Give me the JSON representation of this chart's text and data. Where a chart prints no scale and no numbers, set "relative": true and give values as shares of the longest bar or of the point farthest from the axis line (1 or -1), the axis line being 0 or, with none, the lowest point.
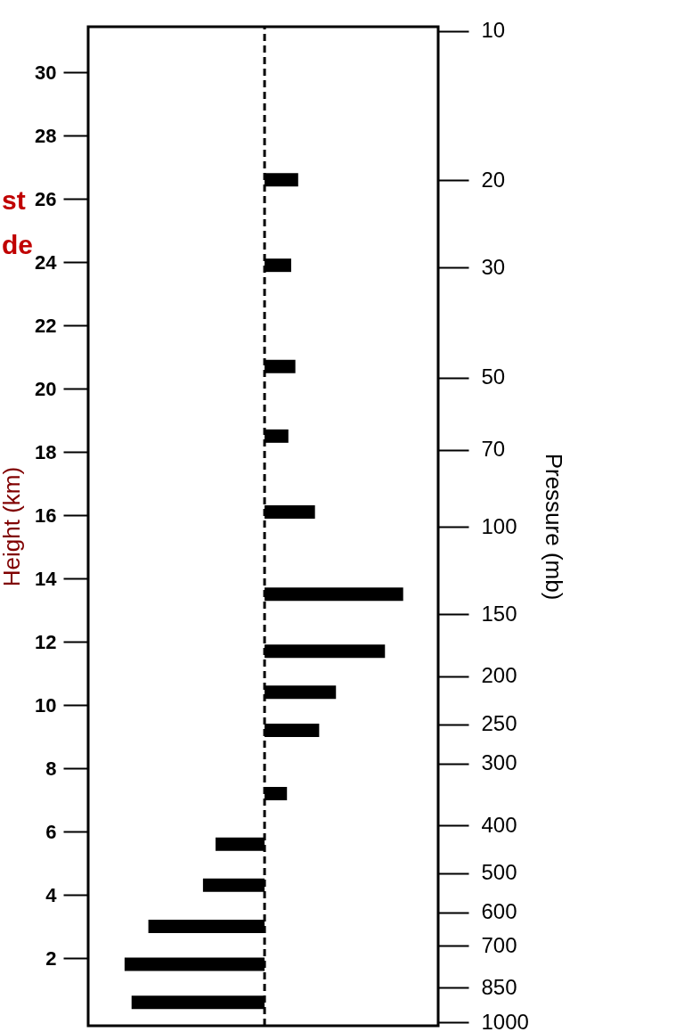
{
  "chart_data": {
    "type": "bar",
    "orientation": "horizontal",
    "relative": true,
    "ylabel": "Height (km)",
    "y2label": "Pressure (mb)",
    "x": [
      26.6,
      23.9,
      20.7,
      18.5,
      16.1,
      13.5,
      11.7,
      10.4,
      9.2,
      7.2,
      5.6,
      4.3,
      3.0,
      1.8,
      0.6
    ],
    "values": [
      0.24,
      0.19,
      0.22,
      0.17,
      0.36,
      0.99,
      0.86,
      0.51,
      0.39,
      0.16,
      -0.35,
      -0.44,
      -0.83,
      -1,
      -0.95
    ],
    "color": "#000000",
    "ylim": [
      0,
      31.3
    ],
    "yticks": [
      2,
      4,
      6,
      8,
      10,
      12,
      14,
      16,
      18,
      20,
      22,
      24,
      26,
      28,
      30
    ],
    "y2lim": [
      1015,
      9.8
    ],
    "y2ticks": [
      10,
      20,
      30,
      50,
      70,
      100,
      150,
      200,
      250,
      300,
      400,
      500,
      600,
      700,
      850,
      1000
    ],
    "log": "y2",
    "ref_lines": [
      {
        "axis": "x",
        "value": 0,
        "line_style": "dashed",
        "color": "#000000"
      }
    ],
    "annotations": [
      "st",
      "de"
    ]
  }
}
